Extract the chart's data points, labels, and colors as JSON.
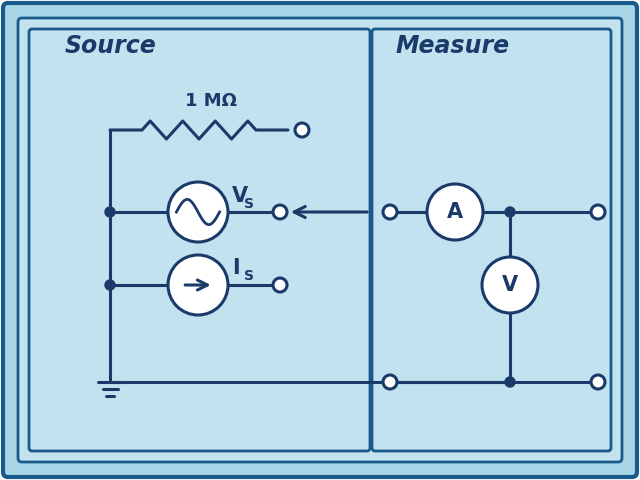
{
  "bg_outer": "#a8d4e8",
  "bg_inner": "#c2e2f0",
  "border_color": "#1a5a8a",
  "line_color": "#1a3a6a",
  "text_color": "#1a3a6a",
  "fill_circle": "#ffffff",
  "title_source": "Source",
  "title_measure": "Measure",
  "resistor_label": "1 MΩ",
  "vs_label": "V",
  "vs_sub": "S",
  "is_label": "I",
  "is_sub": "S",
  "a_label": "A",
  "v_label": "V",
  "figsize": [
    6.4,
    4.8
  ],
  "dpi": 100
}
